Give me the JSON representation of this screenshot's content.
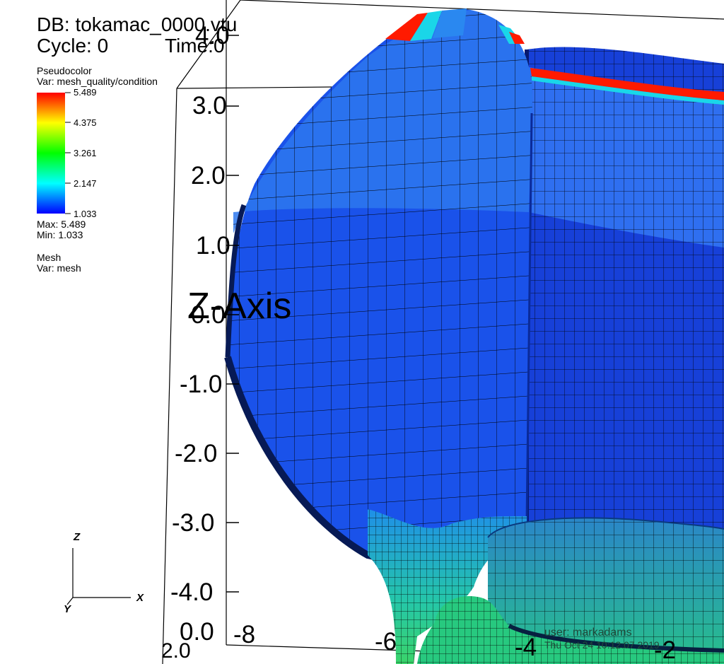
{
  "header": {
    "db_label": "DB: tokamac_0000.vtu",
    "cycle_label": "Cycle: 0",
    "time_label": "Time:0"
  },
  "legend": {
    "plot_type": "Pseudocolor",
    "variable": "Var: mesh_quality/condition",
    "ticks": [
      "5.489",
      "4.375",
      "3.261",
      "2.147",
      "1.033"
    ],
    "max_label": "Max:  5.489",
    "min_label": "Min:  1.033",
    "colors": [
      "#ff0000",
      "#ffff00",
      "#00ff00",
      "#00ffff",
      "#0000ff"
    ]
  },
  "mesh_legend": {
    "plot_type": "Mesh",
    "variable": "Var: mesh"
  },
  "axes": {
    "z_title": "Z-Axis",
    "z_ticks": [
      "4.0",
      "3.0",
      "2.0",
      "1.0",
      "0.0",
      "-1.0",
      "-2.0",
      "-3.0",
      "-4.0"
    ],
    "x_ticks": [
      "-8",
      "-6",
      "-4",
      "-2"
    ],
    "corner_ticks": [
      "0.0",
      "2.0"
    ],
    "triad": {
      "z": "Z",
      "x": "X",
      "y": "Y"
    }
  },
  "footer": {
    "user": "user: markadams",
    "date": "Thu Oct 24 10:12:07 2019"
  },
  "colors": {
    "background": "#ffffff",
    "mesh_blue": "#1a52ea",
    "mesh_light_blue": "#2f7aee",
    "mesh_dark_blue": "#0f2fe0",
    "mesh_cyan": "#1ad6e8",
    "mesh_green": "#27c98a",
    "mesh_red": "#ff1a00"
  }
}
